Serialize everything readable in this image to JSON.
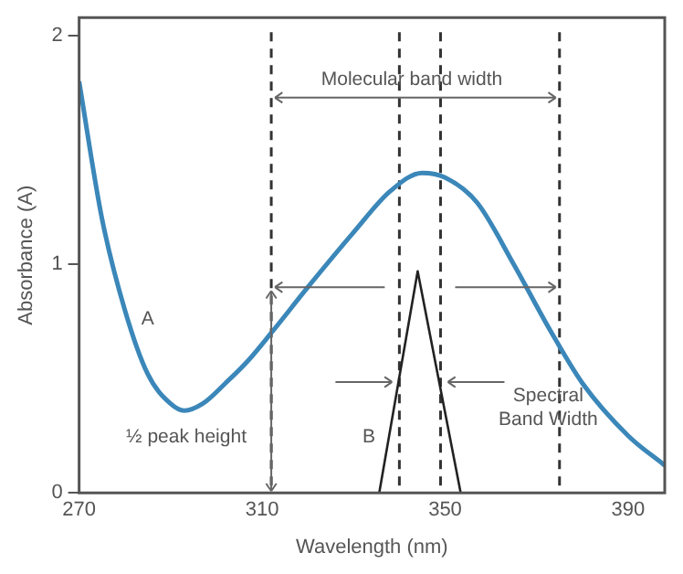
{
  "chart_data": {
    "type": "line",
    "xlabel": "Wavelength (nm)",
    "ylabel": "Absorbance (A)",
    "xlim": [
      270,
      398
    ],
    "ylim": [
      0,
      2.08
    ],
    "xticks": [
      270,
      310,
      350,
      390
    ],
    "yticks": [
      0,
      1,
      2
    ],
    "grid": false,
    "legend": false,
    "marker": "none",
    "line_style": "solid",
    "series": [
      {
        "color": "#3b87b9",
        "x": [
          270,
          275,
          280,
          285,
          290,
          293,
          297,
          302,
          307,
          312,
          320,
          330,
          338,
          345,
          350,
          357,
          365,
          373,
          380,
          390,
          398
        ],
        "values": [
          1.8,
          1.2,
          0.8,
          0.52,
          0.39,
          0.36,
          0.39,
          0.48,
          0.58,
          0.7,
          0.9,
          1.14,
          1.32,
          1.4,
          1.38,
          1.27,
          1.0,
          0.71,
          0.48,
          0.25,
          0.12
        ]
      },
      {
        "color": "#222222",
        "x": [
          335.6,
          344,
          353.4
        ],
        "values": [
          0,
          0.97,
          0
        ]
      }
    ],
    "ref_lines": [
      {
        "axis": "x",
        "value": 312,
        "color": "#333333",
        "line_style": "dashed"
      },
      {
        "axis": "x",
        "value": 375,
        "color": "#333333",
        "line_style": "dashed"
      },
      {
        "axis": "x",
        "value": 340,
        "color": "#333333",
        "line_style": "dashed"
      },
      {
        "axis": "x",
        "value": 349,
        "color": "#333333",
        "line_style": "dashed"
      }
    ],
    "annotations": [
      "Molecular band width",
      "A",
      "B",
      "½ peak height",
      "Spectral Band Width"
    ]
  }
}
